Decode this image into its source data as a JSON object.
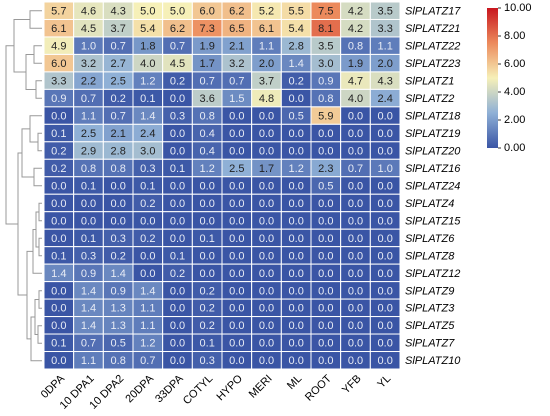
{
  "chart_data": {
    "type": "heatmap",
    "columns": [
      "0DPA",
      "10 DPA1",
      "10 DPA2",
      "20DPA",
      "33DPA",
      "COTYL",
      "HYPO",
      "MERI",
      "ML",
      "ROOT",
      "YFB",
      "YL"
    ],
    "series": [
      {
        "name": "SlPLATZ17",
        "values": [
          5.7,
          4.6,
          4.3,
          5.0,
          5.0,
          6.0,
          6.2,
          5.2,
          5.5,
          7.5,
          4.2,
          3.5
        ],
        "value_labels": [
          "5.7",
          "4.6",
          "4.3",
          "5.0",
          "5.0",
          "6.0",
          "6.2",
          "5.2",
          "5.5",
          "7.5",
          "4.2",
          "3.5"
        ]
      },
      {
        "name": "SlPLATZ21",
        "values": [
          6.1,
          4.5,
          3.7,
          5.4,
          6.2,
          7.3,
          6.5,
          6.1,
          5.4,
          8.1,
          4.2,
          3.3
        ],
        "value_labels": [
          "6.1",
          "4.5",
          "3.7",
          "5.4",
          "6.2",
          "7.3",
          "6.5",
          "6.1",
          "5.4",
          "8.1",
          "4.2",
          "3.3"
        ]
      },
      {
        "name": "SlPLATZ22",
        "values": [
          4.9,
          1.0,
          0.7,
          1.8,
          0.7,
          1.9,
          2.1,
          1.1,
          2.8,
          3.5,
          0.8,
          1.1
        ],
        "value_labels": [
          "4.9",
          "1.0",
          "0.7",
          "1.8",
          "0.7",
          "1.9",
          "2.1",
          "1.1",
          "2.8",
          "3.5",
          "0.8",
          "1.1"
        ]
      },
      {
        "name": "SlPLATZ23",
        "values": [
          6.0,
          3.2,
          2.7,
          4.0,
          4.5,
          1.7,
          3.2,
          2.0,
          1.4,
          3.0,
          1.9,
          2.0
        ],
        "value_labels": [
          "6.0",
          "3.2",
          "2.7",
          "4.0",
          "4.5",
          "1.7",
          "3.2",
          "2.0",
          "1.4",
          "3.0",
          "1.9",
          "2.0"
        ]
      },
      {
        "name": "SlPLATZ1",
        "values": [
          3.3,
          2.2,
          2.5,
          1.2,
          0.2,
          0.7,
          0.7,
          3.7,
          0.2,
          0.9,
          4.7,
          4.3
        ],
        "value_labels": [
          "3.3",
          "2.2",
          "2.5",
          "1.2",
          "0.2",
          "0.7",
          "0.7",
          "3.7",
          "0.2",
          "0.9",
          "4.7",
          "4.3"
        ]
      },
      {
        "name": "SlPLATZ2",
        "values": [
          0.9,
          0.7,
          0.2,
          0.1,
          0,
          3.6,
          1.5,
          4.8,
          0,
          0.8,
          4.0,
          2.4
        ],
        "value_labels": [
          "0.9",
          "0.7",
          "0.2",
          "0.1",
          "0.0",
          "3.6",
          "1.5",
          "4.8",
          "0.0",
          "0.8",
          "4.0",
          "2.4"
        ]
      },
      {
        "name": "SlPLATZ18",
        "values": [
          0,
          1.1,
          0.7,
          1.4,
          0.3,
          0.8,
          0,
          0,
          0.5,
          5.9,
          0,
          0
        ],
        "value_labels": [
          "0.0",
          "1.1",
          "0.7",
          "1.4",
          "0.3",
          "0.8",
          "0.0",
          "0.0",
          "0.5",
          "5.9",
          "0.0",
          "0.0"
        ]
      },
      {
        "name": "SlPLATZ19",
        "values": [
          0.1,
          2.5,
          2.1,
          2.4,
          0,
          0.4,
          0,
          0,
          0,
          0,
          0,
          0
        ],
        "value_labels": [
          "0.1",
          "2.5",
          "2.1",
          "2.4",
          "0.0",
          "0.4",
          "0.0",
          "0.0",
          "0.0",
          "0.0",
          "0.0",
          "0.0"
        ]
      },
      {
        "name": "SlPLATZ20",
        "values": [
          0.2,
          2.9,
          2.8,
          3.0,
          0,
          0.4,
          0,
          0,
          0,
          0,
          0,
          0
        ],
        "value_labels": [
          "0.2",
          "2.9",
          "2.8",
          "3.0",
          "0.0",
          "0.4",
          "0.0",
          "0.0",
          "0.0",
          "0.0",
          "0.0",
          "0.0"
        ]
      },
      {
        "name": "SlPLATZ16",
        "values": [
          0.2,
          0.8,
          0.8,
          0.3,
          0.1,
          1.2,
          2.5,
          1.7,
          1.2,
          2.3,
          0.7,
          1.0
        ],
        "value_labels": [
          "0.2",
          "0.8",
          "0.8",
          "0.3",
          "0.1",
          "1.2",
          "2.5",
          "1.7",
          "1.2",
          "2.3",
          "0.7",
          "1.0"
        ]
      },
      {
        "name": "SlPLATZ24",
        "values": [
          0,
          0.1,
          0,
          0.1,
          0,
          0,
          0,
          0,
          0,
          0.5,
          0,
          0
        ],
        "value_labels": [
          "0.0",
          "0.1",
          "0.0",
          "0.1",
          "0.0",
          "0.0",
          "0.0",
          "0.0",
          "0.0",
          "0.5",
          "0.0",
          "0.0"
        ]
      },
      {
        "name": "SlPLATZ4",
        "values": [
          0,
          0,
          0,
          0.2,
          0,
          0,
          0,
          0,
          0,
          0,
          0,
          0
        ],
        "value_labels": [
          "0.0",
          "0.0",
          "0.0",
          "0.2",
          "0.0",
          "0.0",
          "0.0",
          "0.0",
          "0.0",
          "0.0",
          "0.0",
          "0.0"
        ]
      },
      {
        "name": "SlPLATZ15",
        "values": [
          0,
          0,
          0,
          0,
          0,
          0,
          0,
          0,
          0,
          0,
          0,
          0
        ],
        "value_labels": [
          "0.0",
          "0.0",
          "0.0",
          "0.0",
          "0.0",
          "0.0",
          "0.0",
          "0.0",
          "0.0",
          "0.0",
          "0.0",
          "0.0"
        ]
      },
      {
        "name": "SlPLATZ6",
        "values": [
          0,
          0.1,
          0.3,
          0.2,
          0,
          0.1,
          0,
          0,
          0,
          0,
          0,
          0
        ],
        "value_labels": [
          "0.0",
          "0.1",
          "0.3",
          "0.2",
          "0.0",
          "0.1",
          "0.0",
          "0.0",
          "0.0",
          "0.0",
          "0.0",
          "0.0"
        ]
      },
      {
        "name": "SlPLATZ8",
        "values": [
          0.1,
          0.3,
          0.2,
          0,
          0.1,
          0,
          0,
          0,
          0,
          0,
          0,
          0
        ],
        "value_labels": [
          "0.1",
          "0.3",
          "0.2",
          "0.0",
          "0.1",
          "0.0",
          "0.0",
          "0.0",
          "0.0",
          "0.0",
          "0.0",
          "0.0"
        ]
      },
      {
        "name": "SlPLATZ12",
        "values": [
          1.4,
          0.9,
          1.4,
          0,
          0.2,
          0,
          0,
          0,
          0,
          0,
          0,
          0
        ],
        "value_labels": [
          "1.4",
          "0.9",
          "1.4",
          "0.0",
          "0.2",
          "0.0",
          "0.0",
          "0.0",
          "0.0",
          "0.0",
          "0.0",
          "0.0"
        ]
      },
      {
        "name": "SlPLATZ9",
        "values": [
          0,
          1.4,
          0.9,
          1.4,
          0,
          0.2,
          0,
          0,
          0,
          0,
          0,
          0
        ],
        "value_labels": [
          "0.0",
          "1.4",
          "0.9",
          "1.4",
          "0.0",
          "0.2",
          "0.0",
          "0.0",
          "0.0",
          "0.0",
          "0.0",
          "0.0"
        ]
      },
      {
        "name": "SlPLATZ3",
        "values": [
          0,
          1.4,
          1.3,
          1.1,
          0,
          0.2,
          0,
          0,
          0,
          0,
          0,
          0
        ],
        "value_labels": [
          "0.0",
          "1.4",
          "1.3",
          "1.1",
          "0.0",
          "0.2",
          "0.0",
          "0.0",
          "0.0",
          "0.0",
          "0.0",
          "0.0"
        ]
      },
      {
        "name": "SlPLATZ5",
        "values": [
          0,
          1.4,
          1.3,
          1.1,
          0,
          0.2,
          0,
          0,
          0,
          0,
          0,
          0
        ],
        "value_labels": [
          "0.0",
          "1.4",
          "1.3",
          "1.1",
          "0.0",
          "0.2",
          "0.0",
          "0.0",
          "0.0",
          "0.0",
          "0.0",
          "0.0"
        ]
      },
      {
        "name": "SlPLATZ7",
        "values": [
          0.1,
          0.7,
          0.5,
          1.2,
          0,
          0.1,
          0,
          0,
          0,
          0,
          0,
          0
        ],
        "value_labels": [
          "0.1",
          "0.7",
          "0.5",
          "1.2",
          "0.0",
          "0.1",
          "0.0",
          "0.0",
          "0.0",
          "0.0",
          "0.0",
          "0.0"
        ]
      },
      {
        "name": "SlPLATZ10",
        "values": [
          0,
          1.1,
          0.8,
          0.7,
          0,
          0.3,
          0,
          0,
          0,
          0,
          0,
          0
        ],
        "value_labels": [
          "0.0",
          "1.1",
          "0.8",
          "0.7",
          "0.0",
          "0.3",
          "0.0",
          "0.0",
          "0.0",
          "0.0",
          "0.0",
          "0.0"
        ]
      }
    ],
    "zlim": [
      0,
      10
    ],
    "zticks": [
      {
        "value": 0,
        "label": "0.00"
      },
      {
        "value": 2,
        "label": "2.00"
      },
      {
        "value": 4,
        "label": "4.00"
      },
      {
        "value": 6,
        "label": "6.00"
      },
      {
        "value": 8,
        "label": "8.00"
      },
      {
        "value": 10,
        "label": "10.00"
      }
    ],
    "colors": [
      "#3a55a5",
      "#8fb0d6",
      "#f6f0b8",
      "#ec8a5c",
      "#c8161e"
    ]
  }
}
